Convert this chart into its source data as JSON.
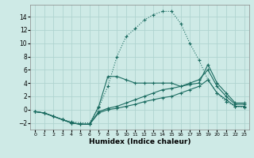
{
  "xlabel": "Humidex (Indice chaleur)",
  "bg_color": "#ceeae6",
  "grid_color": "#afd4d0",
  "line_color": "#1a6b60",
  "xlim": [
    -0.5,
    23.5
  ],
  "ylim": [
    -3.0,
    15.8
  ],
  "yticks": [
    -2,
    0,
    2,
    4,
    6,
    8,
    10,
    12,
    14
  ],
  "xticks": [
    0,
    1,
    2,
    3,
    4,
    5,
    6,
    7,
    8,
    9,
    10,
    11,
    12,
    13,
    14,
    15,
    16,
    17,
    18,
    19,
    20,
    21,
    22,
    23
  ],
  "line_dotted_x": [
    0,
    1,
    2,
    3,
    4,
    5,
    6,
    7,
    8,
    9,
    10,
    11,
    12,
    13,
    14,
    15,
    16,
    17,
    18,
    19,
    20,
    21,
    22,
    23
  ],
  "line_dotted_y": [
    -0.3,
    -0.5,
    -1.0,
    -1.5,
    -1.8,
    -2.0,
    -2.0,
    0.3,
    3.5,
    8.0,
    11.0,
    12.2,
    13.5,
    14.3,
    14.8,
    14.8,
    13.0,
    10.0,
    7.5,
    4.5,
    2.5,
    1.2,
    0.5,
    0.3
  ],
  "line_solid1_x": [
    0,
    1,
    2,
    3,
    4,
    5,
    6,
    7,
    8,
    9,
    10,
    11,
    12,
    13,
    14,
    15,
    16,
    17,
    18,
    19,
    20,
    21,
    22,
    23
  ],
  "line_solid1_y": [
    -0.3,
    -0.5,
    -1.0,
    -1.5,
    -2.0,
    -2.2,
    -2.2,
    0.5,
    5.0,
    5.0,
    4.5,
    4.0,
    4.0,
    4.0,
    4.0,
    4.0,
    3.5,
    3.8,
    4.0,
    6.8,
    4.0,
    2.5,
    1.0,
    1.0
  ],
  "line_solid2_x": [
    0,
    1,
    2,
    3,
    4,
    5,
    6,
    7,
    8,
    9,
    10,
    11,
    12,
    13,
    14,
    15,
    16,
    17,
    18,
    19,
    20,
    21,
    22,
    23
  ],
  "line_solid2_y": [
    -0.3,
    -0.5,
    -1.0,
    -1.5,
    -2.0,
    -2.2,
    -2.2,
    -0.3,
    0.2,
    0.5,
    1.0,
    1.5,
    2.0,
    2.5,
    3.0,
    3.2,
    3.5,
    4.0,
    4.5,
    6.0,
    3.5,
    2.0,
    0.8,
    0.8
  ],
  "line_solid3_x": [
    0,
    1,
    2,
    3,
    4,
    5,
    6,
    7,
    8,
    9,
    10,
    11,
    12,
    13,
    14,
    15,
    16,
    17,
    18,
    19,
    20,
    21,
    22,
    23
  ],
  "line_solid3_y": [
    -0.3,
    -0.5,
    -1.0,
    -1.5,
    -2.0,
    -2.2,
    -2.2,
    -0.5,
    0.0,
    0.2,
    0.5,
    0.8,
    1.2,
    1.5,
    1.8,
    2.0,
    2.5,
    3.0,
    3.5,
    4.5,
    2.5,
    1.5,
    0.5,
    0.5
  ]
}
